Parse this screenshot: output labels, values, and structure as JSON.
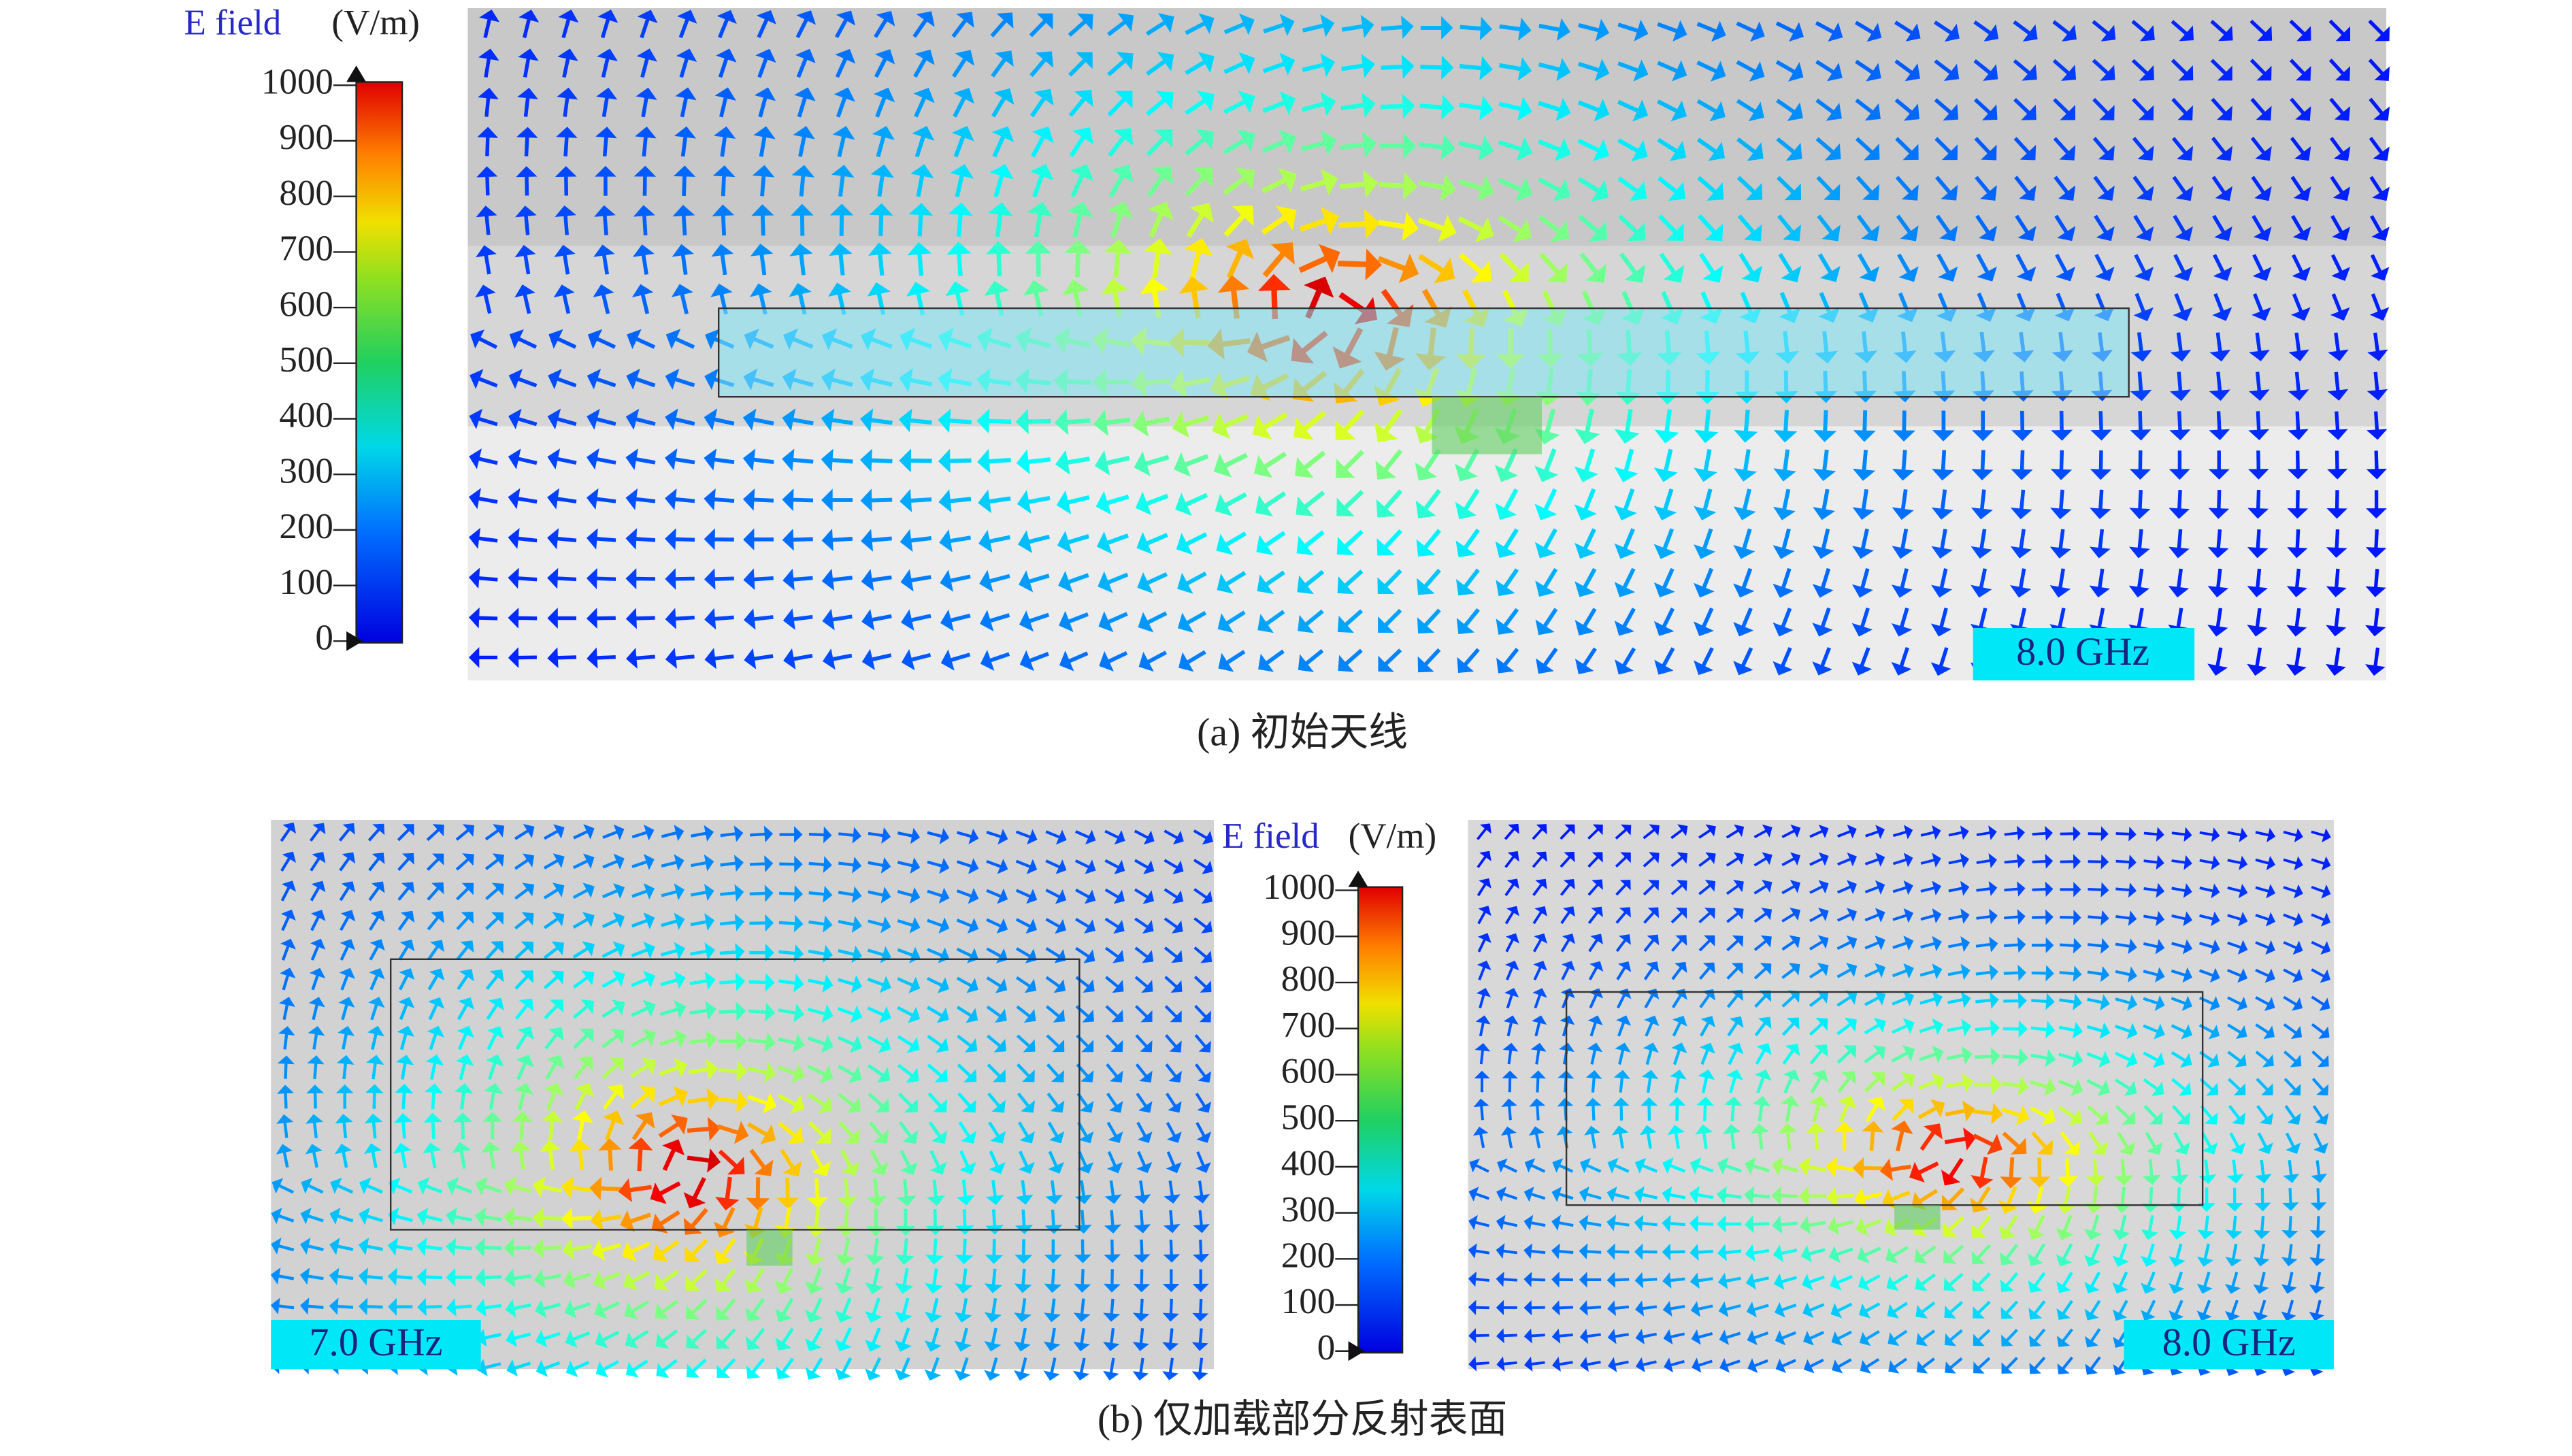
{
  "panel_a": {
    "legend": {
      "title": "E field",
      "unit": "(V/m)",
      "ticks": [
        0,
        100,
        200,
        300,
        400,
        500,
        600,
        700,
        800,
        900,
        1000
      ]
    },
    "frequency": "8.0 GHz",
    "caption": "(a) 初始天线"
  },
  "panel_b": {
    "legend": {
      "title": "E field",
      "unit": "(V/m)",
      "ticks": [
        0,
        100,
        200,
        300,
        400,
        500,
        600,
        700,
        800,
        900,
        1000
      ]
    },
    "left": {
      "frequency": "7.0 GHz"
    },
    "right": {
      "frequency": "8.0 GHz"
    },
    "caption": "(b) 仅加载部分反射表面"
  }
}
